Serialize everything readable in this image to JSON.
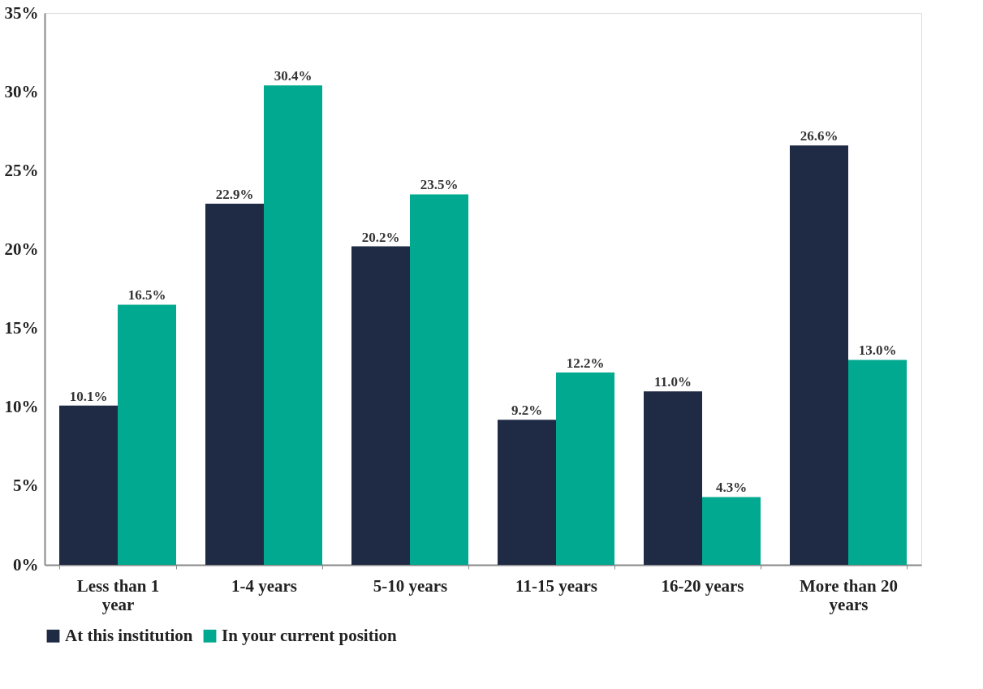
{
  "chart_data": {
    "type": "bar",
    "categories": [
      "Less than 1 year",
      "1-4 years",
      "5-10 years",
      "11-15 years",
      "16-20 years",
      "More than 20 years"
    ],
    "series": [
      {
        "name": "At this institution",
        "color": "#1f2a44",
        "values": [
          10.1,
          22.9,
          20.2,
          9.2,
          11.0,
          26.6
        ],
        "value_labels": [
          "10.1%",
          "22.9%",
          "20.2%",
          "9.2%",
          "11.0%",
          "26.6%"
        ]
      },
      {
        "name": "In your current position",
        "color": "#00a98f",
        "values": [
          16.5,
          30.4,
          23.5,
          12.2,
          4.3,
          13.0
        ],
        "value_labels": [
          "16.5%",
          "30.4%",
          "23.5%",
          "12.2%",
          "4.3%",
          "13.0%"
        ]
      }
    ],
    "ylim": [
      0,
      35
    ],
    "yticks": [
      {
        "value": 0,
        "label": "0%"
      },
      {
        "value": 5,
        "label": "5%"
      },
      {
        "value": 10,
        "label": "10%"
      },
      {
        "value": 15,
        "label": "15%"
      },
      {
        "value": 20,
        "label": "20%"
      },
      {
        "value": 25,
        "label": "25%"
      },
      {
        "value": 30,
        "label": "30%"
      },
      {
        "value": 35,
        "label": "35%"
      }
    ],
    "grid": false,
    "legend": "bottom"
  }
}
